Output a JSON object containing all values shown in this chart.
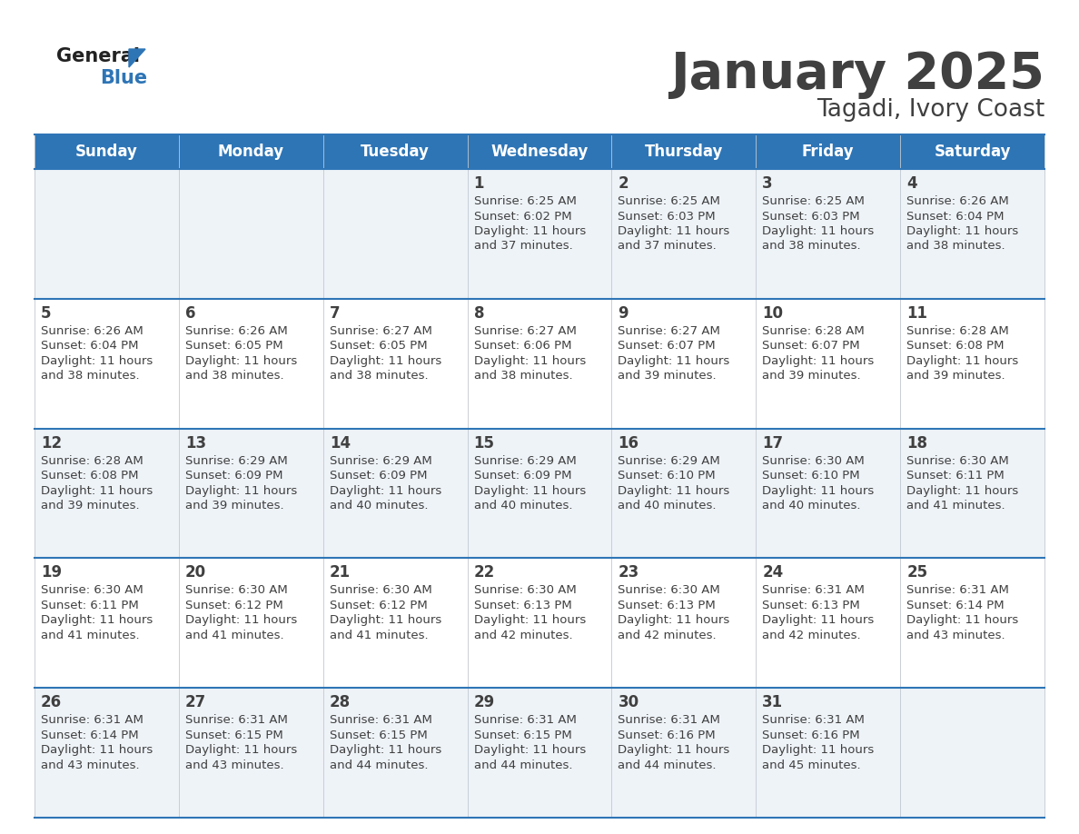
{
  "title": "January 2025",
  "subtitle": "Tagadi, Ivory Coast",
  "header_color": "#2E75B6",
  "header_text_color": "#FFFFFF",
  "day_names": [
    "Sunday",
    "Monday",
    "Tuesday",
    "Wednesday",
    "Thursday",
    "Friday",
    "Saturday"
  ],
  "bg_color": "#FFFFFF",
  "cell_bg_even": "#EEF3F8",
  "cell_bg_odd": "#FFFFFF",
  "border_color": "#2E75B6",
  "text_color": "#404040",
  "logo_general_color": "#222222",
  "logo_blue_color": "#2E75B6",
  "days": [
    {
      "date": 1,
      "dow": 3,
      "sunrise": "6:25 AM",
      "sunset": "6:02 PM",
      "daylight": "11 hours and 37 minutes"
    },
    {
      "date": 2,
      "dow": 4,
      "sunrise": "6:25 AM",
      "sunset": "6:03 PM",
      "daylight": "11 hours and 37 minutes"
    },
    {
      "date": 3,
      "dow": 5,
      "sunrise": "6:25 AM",
      "sunset": "6:03 PM",
      "daylight": "11 hours and 38 minutes"
    },
    {
      "date": 4,
      "dow": 6,
      "sunrise": "6:26 AM",
      "sunset": "6:04 PM",
      "daylight": "11 hours and 38 minutes"
    },
    {
      "date": 5,
      "dow": 0,
      "sunrise": "6:26 AM",
      "sunset": "6:04 PM",
      "daylight": "11 hours and 38 minutes"
    },
    {
      "date": 6,
      "dow": 1,
      "sunrise": "6:26 AM",
      "sunset": "6:05 PM",
      "daylight": "11 hours and 38 minutes"
    },
    {
      "date": 7,
      "dow": 2,
      "sunrise": "6:27 AM",
      "sunset": "6:05 PM",
      "daylight": "11 hours and 38 minutes"
    },
    {
      "date": 8,
      "dow": 3,
      "sunrise": "6:27 AM",
      "sunset": "6:06 PM",
      "daylight": "11 hours and 38 minutes"
    },
    {
      "date": 9,
      "dow": 4,
      "sunrise": "6:27 AM",
      "sunset": "6:07 PM",
      "daylight": "11 hours and 39 minutes"
    },
    {
      "date": 10,
      "dow": 5,
      "sunrise": "6:28 AM",
      "sunset": "6:07 PM",
      "daylight": "11 hours and 39 minutes"
    },
    {
      "date": 11,
      "dow": 6,
      "sunrise": "6:28 AM",
      "sunset": "6:08 PM",
      "daylight": "11 hours and 39 minutes"
    },
    {
      "date": 12,
      "dow": 0,
      "sunrise": "6:28 AM",
      "sunset": "6:08 PM",
      "daylight": "11 hours and 39 minutes"
    },
    {
      "date": 13,
      "dow": 1,
      "sunrise": "6:29 AM",
      "sunset": "6:09 PM",
      "daylight": "11 hours and 39 minutes"
    },
    {
      "date": 14,
      "dow": 2,
      "sunrise": "6:29 AM",
      "sunset": "6:09 PM",
      "daylight": "11 hours and 40 minutes"
    },
    {
      "date": 15,
      "dow": 3,
      "sunrise": "6:29 AM",
      "sunset": "6:09 PM",
      "daylight": "11 hours and 40 minutes"
    },
    {
      "date": 16,
      "dow": 4,
      "sunrise": "6:29 AM",
      "sunset": "6:10 PM",
      "daylight": "11 hours and 40 minutes"
    },
    {
      "date": 17,
      "dow": 5,
      "sunrise": "6:30 AM",
      "sunset": "6:10 PM",
      "daylight": "11 hours and 40 minutes"
    },
    {
      "date": 18,
      "dow": 6,
      "sunrise": "6:30 AM",
      "sunset": "6:11 PM",
      "daylight": "11 hours and 41 minutes"
    },
    {
      "date": 19,
      "dow": 0,
      "sunrise": "6:30 AM",
      "sunset": "6:11 PM",
      "daylight": "11 hours and 41 minutes"
    },
    {
      "date": 20,
      "dow": 1,
      "sunrise": "6:30 AM",
      "sunset": "6:12 PM",
      "daylight": "11 hours and 41 minutes"
    },
    {
      "date": 21,
      "dow": 2,
      "sunrise": "6:30 AM",
      "sunset": "6:12 PM",
      "daylight": "11 hours and 41 minutes"
    },
    {
      "date": 22,
      "dow": 3,
      "sunrise": "6:30 AM",
      "sunset": "6:13 PM",
      "daylight": "11 hours and 42 minutes"
    },
    {
      "date": 23,
      "dow": 4,
      "sunrise": "6:30 AM",
      "sunset": "6:13 PM",
      "daylight": "11 hours and 42 minutes"
    },
    {
      "date": 24,
      "dow": 5,
      "sunrise": "6:31 AM",
      "sunset": "6:13 PM",
      "daylight": "11 hours and 42 minutes"
    },
    {
      "date": 25,
      "dow": 6,
      "sunrise": "6:31 AM",
      "sunset": "6:14 PM",
      "daylight": "11 hours and 43 minutes"
    },
    {
      "date": 26,
      "dow": 0,
      "sunrise": "6:31 AM",
      "sunset": "6:14 PM",
      "daylight": "11 hours and 43 minutes"
    },
    {
      "date": 27,
      "dow": 1,
      "sunrise": "6:31 AM",
      "sunset": "6:15 PM",
      "daylight": "11 hours and 43 minutes"
    },
    {
      "date": 28,
      "dow": 2,
      "sunrise": "6:31 AM",
      "sunset": "6:15 PM",
      "daylight": "11 hours and 44 minutes"
    },
    {
      "date": 29,
      "dow": 3,
      "sunrise": "6:31 AM",
      "sunset": "6:15 PM",
      "daylight": "11 hours and 44 minutes"
    },
    {
      "date": 30,
      "dow": 4,
      "sunrise": "6:31 AM",
      "sunset": "6:16 PM",
      "daylight": "11 hours and 44 minutes"
    },
    {
      "date": 31,
      "dow": 5,
      "sunrise": "6:31 AM",
      "sunset": "6:16 PM",
      "daylight": "11 hours and 45 minutes"
    }
  ]
}
